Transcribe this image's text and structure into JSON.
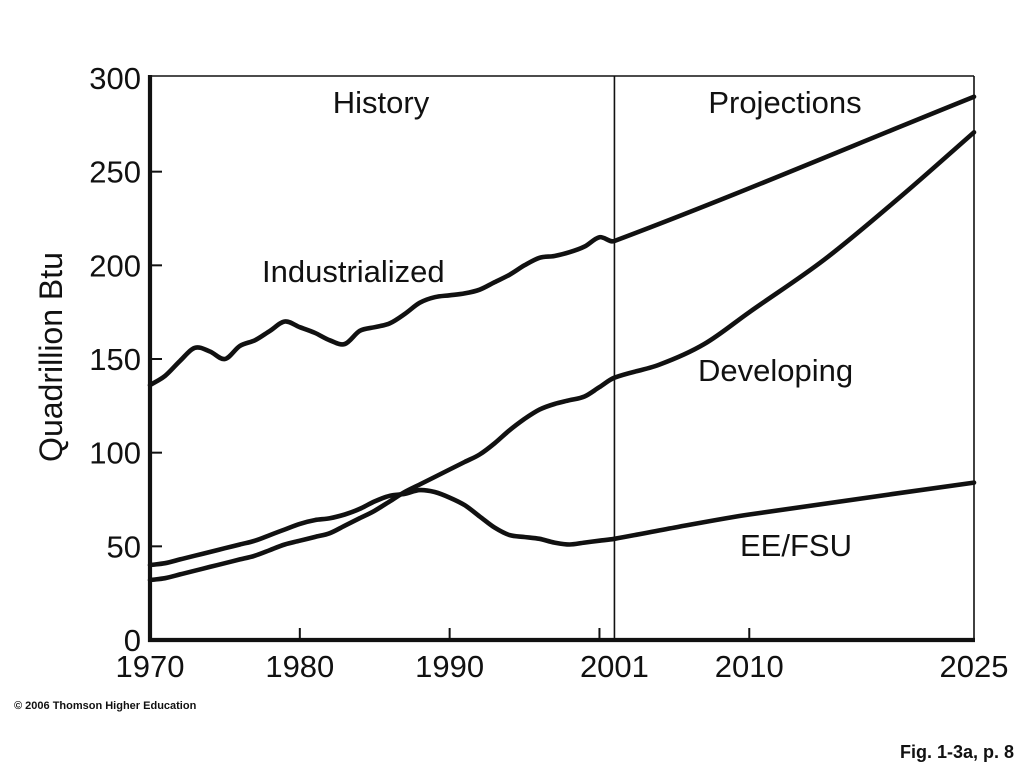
{
  "chart_data": {
    "type": "line",
    "title": "",
    "xlabel": "",
    "ylabel": "Quadrillion Btu",
    "xlim": [
      1970,
      2025
    ],
    "ylim": [
      0,
      300
    ],
    "grid": false,
    "legend": false,
    "x_ticks": [
      {
        "value": 1970,
        "label": "1970"
      },
      {
        "value": 1980,
        "label": "1980"
      },
      {
        "value": 1990,
        "label": "1990"
      },
      {
        "value": 2001,
        "label": "2001"
      },
      {
        "value": 2010,
        "label": "2010"
      },
      {
        "value": 2025,
        "label": "2025"
      }
    ],
    "x_tick_marks": [
      1980,
      1990,
      2000,
      2010
    ],
    "y_ticks": [
      {
        "value": 0,
        "label": "0"
      },
      {
        "value": 50,
        "label": "50"
      },
      {
        "value": 100,
        "label": "100"
      },
      {
        "value": 150,
        "label": "150"
      },
      {
        "value": 200,
        "label": "200"
      },
      {
        "value": 250,
        "label": "250"
      },
      {
        "value": 300,
        "label": "300"
      }
    ],
    "divider_x": 2001,
    "regions": [
      {
        "label": "History",
        "from": 1970,
        "to": 2001
      },
      {
        "label": "Projections",
        "from": 2001,
        "to": 2025
      }
    ],
    "series": [
      {
        "name": "Industrialized",
        "x": [
          1970,
          1971,
          1972,
          1973,
          1974,
          1975,
          1976,
          1977,
          1978,
          1979,
          1980,
          1981,
          1982,
          1983,
          1984,
          1985,
          1986,
          1987,
          1988,
          1989,
          1990,
          1991,
          1992,
          1993,
          1994,
          1995,
          1996,
          1997,
          1998,
          1999,
          2000,
          2001,
          2025
        ],
        "y": [
          136,
          141,
          149,
          156,
          154,
          150,
          157,
          160,
          165,
          170,
          167,
          164,
          160,
          158,
          165,
          167,
          169,
          174,
          180,
          183,
          184,
          185,
          187,
          191,
          195,
          200,
          204,
          205,
          207,
          210,
          215,
          213,
          290
        ]
      },
      {
        "name": "Developing",
        "x": [
          1970,
          1971,
          1972,
          1973,
          1974,
          1975,
          1976,
          1977,
          1978,
          1979,
          1980,
          1981,
          1982,
          1983,
          1984,
          1985,
          1986,
          1987,
          1988,
          1989,
          1990,
          1991,
          1992,
          1993,
          1994,
          1995,
          1996,
          1997,
          1998,
          1999,
          2000,
          2001,
          2004,
          2007,
          2010,
          2015,
          2020,
          2025
        ],
        "y": [
          32,
          33,
          35,
          37,
          39,
          41,
          43,
          45,
          48,
          51,
          53,
          55,
          57,
          61,
          65,
          69,
          74,
          79,
          83,
          87,
          91,
          95,
          99,
          105,
          112,
          118,
          123,
          126,
          128,
          130,
          135,
          140,
          147,
          158,
          175,
          203,
          236,
          271
        ]
      },
      {
        "name": "EE/FSU",
        "x": [
          1970,
          1971,
          1972,
          1973,
          1974,
          1975,
          1976,
          1977,
          1978,
          1979,
          1980,
          1981,
          1982,
          1983,
          1984,
          1985,
          1986,
          1987,
          1988,
          1989,
          1990,
          1991,
          1992,
          1993,
          1994,
          1995,
          1996,
          1997,
          1998,
          1999,
          2000,
          2001,
          2005,
          2010,
          2025
        ],
        "y": [
          40,
          41,
          43,
          45,
          47,
          49,
          51,
          53,
          56,
          59,
          62,
          64,
          65,
          67,
          70,
          74,
          77,
          78,
          80,
          79,
          76,
          72,
          66,
          60,
          56,
          55,
          54,
          52,
          51,
          52,
          53,
          54,
          60,
          67,
          84
        ]
      }
    ]
  },
  "footer": {
    "copyright": "© 2006 Thomson Higher Education",
    "caption": "Fig. 1-3a, p. 8"
  },
  "colors": {
    "ink": "#111111",
    "background": "#ffffff"
  }
}
